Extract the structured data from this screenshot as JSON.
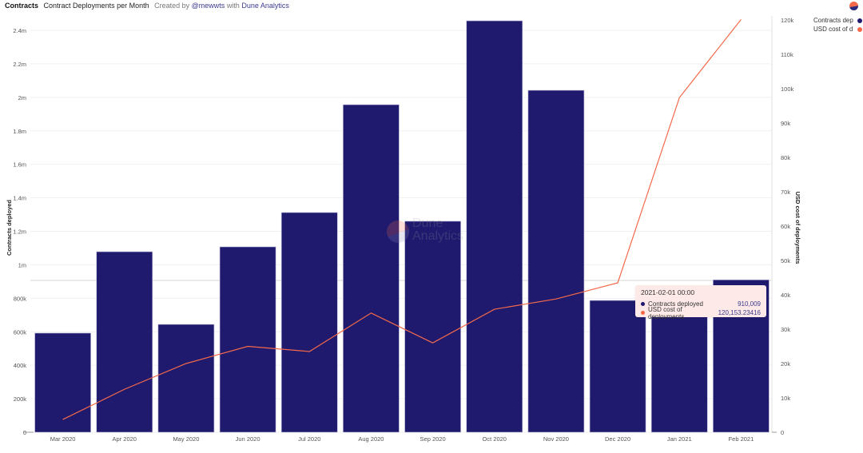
{
  "header": {
    "query_name": "Contracts",
    "chart_title": "Contract Deployments per Month",
    "created_by_prefix": "Created by",
    "author": "@mewwts",
    "with_text": "with",
    "platform": "Dune Analytics"
  },
  "legend": {
    "items": [
      {
        "label": "Contracts deployed",
        "short": "Contracts dep",
        "color": "#1f1a6e"
      },
      {
        "label": "USD cost of deployments",
        "short": "USD cost of d",
        "color": "#f4694a"
      }
    ]
  },
  "tooltip": {
    "date": "2021-02-01 00:00",
    "rows": [
      {
        "label": "Contracts deployed",
        "value": "910,009",
        "color": "#1f1a6e"
      },
      {
        "label": "USD cost of deployments",
        "value": "120,153.23416",
        "color": "#f4694a"
      }
    ]
  },
  "watermark": {
    "line1": "Dune",
    "line2": "Analytics"
  },
  "chart_data": {
    "type": "bar",
    "title": "Contract Deployments per Month",
    "categories": [
      "Mar 2020",
      "Apr 2020",
      "May 2020",
      "Jun 2020",
      "Jul 2020",
      "Aug 2020",
      "Sep 2020",
      "Oct 2020",
      "Nov 2020",
      "Dec 2020",
      "Jan 2021",
      "Feb 2021"
    ],
    "series": [
      {
        "name": "Contracts deployed",
        "type": "bar",
        "axis": "left",
        "color": "#1f1a6e",
        "values": [
          592000,
          1078000,
          644000,
          1107000,
          1312000,
          1956000,
          1260000,
          2457000,
          2042000,
          787000,
          690000,
          910009
        ]
      },
      {
        "name": "USD cost of deployments",
        "type": "line",
        "axis": "right",
        "color": "#f4694a",
        "values": [
          3700,
          12500,
          20000,
          25000,
          23500,
          34700,
          26000,
          35800,
          38800,
          43500,
          97400,
          120153.23416
        ]
      }
    ],
    "xlabel": "",
    "ylabel": "Contracts deployed",
    "y2label": "USD cost of deployments",
    "ylim": [
      0,
      2400000
    ],
    "y2lim": [
      0,
      120000
    ],
    "yticks": [
      "0",
      "200k",
      "400k",
      "600k",
      "800k",
      "1m",
      "1.2m",
      "1.4m",
      "1.6m",
      "1.8m",
      "2m",
      "2.2m",
      "2.4m"
    ],
    "y2ticks": [
      "0",
      "10k",
      "20k",
      "30k",
      "40k",
      "50k",
      "60k",
      "70k",
      "80k",
      "90k",
      "100k",
      "110k",
      "120k"
    ],
    "grid": true,
    "legend_position": "top-right"
  }
}
